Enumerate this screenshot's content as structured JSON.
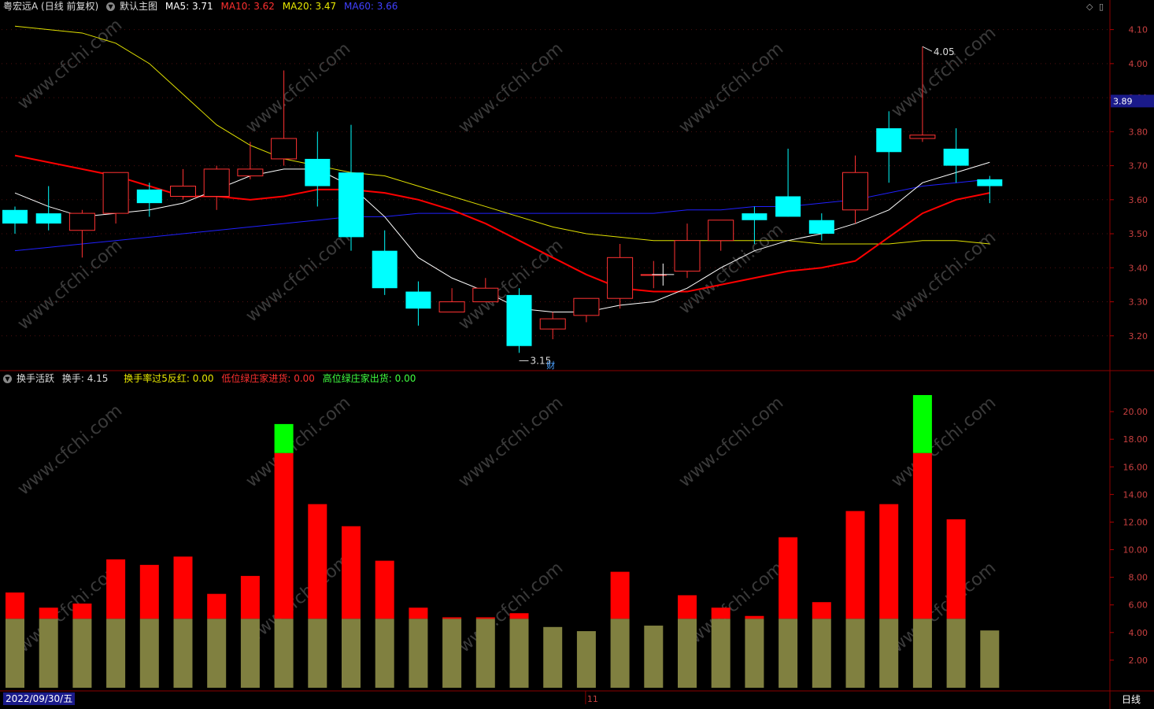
{
  "main_header": {
    "stock": "粤宏远A (日线 前复权)",
    "main_chart": "默认主图",
    "ma5_label": "MA5:",
    "ma5": "3.71",
    "ma10_label": "MA10:",
    "ma10": "3.62",
    "ma20_label": "MA20:",
    "ma20": "3.47",
    "ma60_label": "MA60:",
    "ma60": "3.66"
  },
  "sub_header": {
    "indicator": "换手活跃",
    "turnover_label": "换手:",
    "turnover": "4.15",
    "s1_label": "换手率过5反红:",
    "s1": "0.00",
    "s2_label": "低位绿庄家进货:",
    "s2": "0.00",
    "s3_label": "高位绿庄家出货:",
    "s3": "0.00"
  },
  "price_tag": "3.89",
  "high_annotation": "4.05",
  "low_annotation": "3.15",
  "fin_marker": "财",
  "date_label": "2022/09/30/五",
  "month_marker": "11",
  "period_tab": "日线",
  "watermark": "www.cfchi.com",
  "colors": {
    "up": "#ff3232",
    "down": "#00ffff",
    "ma5": "#ffffff",
    "ma10": "#ff0000",
    "ma20": "#e0e000",
    "ma60": "#2020ff",
    "vol_base": "#808040",
    "vol_red": "#ff0000",
    "vol_green": "#00ff00"
  },
  "chart_data": [
    {
      "type": "candlestick",
      "y_ticks": [
        "4.10",
        "4.00",
        "3.90",
        "3.80",
        "3.70",
        "3.60",
        "3.50",
        "3.40",
        "3.30",
        "3.20"
      ],
      "ylim": [
        3.1,
        4.15
      ],
      "candles": [
        {
          "o": 3.57,
          "h": 3.58,
          "l": 3.5,
          "c": 3.53
        },
        {
          "o": 3.56,
          "h": 3.64,
          "l": 3.51,
          "c": 3.53
        },
        {
          "o": 3.51,
          "h": 3.57,
          "l": 3.43,
          "c": 3.56
        },
        {
          "o": 3.56,
          "h": 3.68,
          "l": 3.53,
          "c": 3.68
        },
        {
          "o": 3.63,
          "h": 3.65,
          "l": 3.55,
          "c": 3.59
        },
        {
          "o": 3.61,
          "h": 3.69,
          "l": 3.6,
          "c": 3.64
        },
        {
          "o": 3.61,
          "h": 3.7,
          "l": 3.57,
          "c": 3.69
        },
        {
          "o": 3.67,
          "h": 3.77,
          "l": 3.66,
          "c": 3.69
        },
        {
          "o": 3.72,
          "h": 3.98,
          "l": 3.7,
          "c": 3.78
        },
        {
          "o": 3.72,
          "h": 3.8,
          "l": 3.58,
          "c": 3.64
        },
        {
          "o": 3.68,
          "h": 3.82,
          "l": 3.45,
          "c": 3.49
        },
        {
          "o": 3.45,
          "h": 3.51,
          "l": 3.32,
          "c": 3.34
        },
        {
          "o": 3.33,
          "h": 3.36,
          "l": 3.23,
          "c": 3.28
        },
        {
          "o": 3.27,
          "h": 3.34,
          "l": 3.27,
          "c": 3.3
        },
        {
          "o": 3.3,
          "h": 3.37,
          "l": 3.3,
          "c": 3.34
        },
        {
          "o": 3.32,
          "h": 3.34,
          "l": 3.15,
          "c": 3.17
        },
        {
          "o": 3.22,
          "h": 3.27,
          "l": 3.19,
          "c": 3.25
        },
        {
          "o": 3.26,
          "h": 3.31,
          "l": 3.24,
          "c": 3.31
        },
        {
          "o": 3.31,
          "h": 3.47,
          "l": 3.28,
          "c": 3.43
        },
        {
          "o": 3.38,
          "h": 3.42,
          "l": 3.34,
          "c": 3.38
        },
        {
          "o": 3.39,
          "h": 3.53,
          "l": 3.37,
          "c": 3.48
        },
        {
          "o": 3.48,
          "h": 3.54,
          "l": 3.45,
          "c": 3.54
        },
        {
          "o": 3.56,
          "h": 3.58,
          "l": 3.47,
          "c": 3.54
        },
        {
          "o": 3.61,
          "h": 3.75,
          "l": 3.55,
          "c": 3.55
        },
        {
          "o": 3.54,
          "h": 3.56,
          "l": 3.48,
          "c": 3.5
        },
        {
          "o": 3.57,
          "h": 3.73,
          "l": 3.53,
          "c": 3.68
        },
        {
          "o": 3.81,
          "h": 3.86,
          "l": 3.65,
          "c": 3.74
        },
        {
          "o": 3.78,
          "h": 4.05,
          "l": 3.77,
          "c": 3.79
        },
        {
          "o": 3.75,
          "h": 3.81,
          "l": 3.65,
          "c": 3.7
        },
        {
          "o": 3.66,
          "h": 3.67,
          "l": 3.59,
          "c": 3.64
        }
      ],
      "ma5": [
        3.62,
        3.58,
        3.55,
        3.56,
        3.57,
        3.59,
        3.63,
        3.67,
        3.69,
        3.69,
        3.64,
        3.55,
        3.43,
        3.37,
        3.33,
        3.28,
        3.27,
        3.27,
        3.29,
        3.3,
        3.34,
        3.4,
        3.45,
        3.48,
        3.5,
        3.53,
        3.57,
        3.65,
        3.68,
        3.71
      ],
      "ma10": [
        3.73,
        3.71,
        3.69,
        3.67,
        3.64,
        3.61,
        3.61,
        3.6,
        3.61,
        3.63,
        3.63,
        3.62,
        3.6,
        3.57,
        3.53,
        3.48,
        3.43,
        3.38,
        3.34,
        3.33,
        3.33,
        3.35,
        3.37,
        3.39,
        3.4,
        3.42,
        3.49,
        3.56,
        3.6,
        3.62
      ],
      "ma20": [
        4.11,
        4.1,
        4.09,
        4.06,
        4.0,
        3.91,
        3.82,
        3.76,
        3.72,
        3.7,
        3.68,
        3.67,
        3.64,
        3.61,
        3.58,
        3.55,
        3.52,
        3.5,
        3.49,
        3.48,
        3.48,
        3.48,
        3.48,
        3.48,
        3.47,
        3.47,
        3.47,
        3.48,
        3.48,
        3.47
      ],
      "ma60": [
        3.45,
        3.46,
        3.47,
        3.48,
        3.49,
        3.5,
        3.51,
        3.52,
        3.53,
        3.54,
        3.55,
        3.55,
        3.56,
        3.56,
        3.56,
        3.56,
        3.56,
        3.56,
        3.56,
        3.56,
        3.57,
        3.57,
        3.58,
        3.58,
        3.59,
        3.6,
        3.62,
        3.64,
        3.65,
        3.66
      ]
    },
    {
      "type": "bar",
      "y_ticks": [
        "20.00",
        "18.00",
        "16.00",
        "14.00",
        "12.00",
        "10.00",
        "8.00",
        "6.00",
        "4.00",
        "2.00"
      ],
      "ylim": [
        0,
        22
      ],
      "values": [
        6.9,
        5.8,
        6.1,
        9.3,
        8.9,
        9.5,
        6.8,
        8.1,
        19.1,
        13.3,
        11.7,
        9.2,
        5.8,
        5.1,
        5.1,
        5.4,
        4.4,
        4.1,
        8.4,
        4.5,
        6.7,
        5.8,
        5.2,
        10.9,
        6.2,
        12.8,
        13.3,
        21.2,
        12.2,
        4.15
      ],
      "base_cap": 5.0,
      "red_cap": 17.0
    }
  ]
}
